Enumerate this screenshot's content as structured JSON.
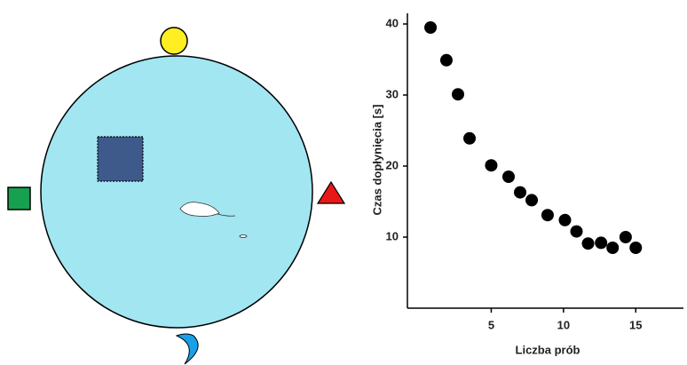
{
  "chart_data": {
    "type": "scatter",
    "x": [
      0.8,
      1.9,
      2.7,
      3.5,
      5,
      6.2,
      7,
      7.8,
      8.9,
      10.1,
      10.9,
      11.7,
      12.6,
      13.4,
      14.3,
      15
    ],
    "values": [
      39.5,
      34.9,
      30.1,
      23.9,
      20.1,
      18.5,
      16.3,
      15.2,
      13.1,
      12.4,
      10.8,
      9.1,
      9.2,
      8.5,
      10,
      8.5
    ],
    "color": "#000000",
    "xlabel": "Liczba prób",
    "ylabel": "Czas dopłynięcia [s]",
    "xlim": [
      -0.8,
      18.3
    ],
    "ylim": [
      0,
      41.5
    ],
    "xticks": [
      5,
      10,
      15
    ],
    "yticks": [
      10,
      20,
      30,
      40
    ]
  }
}
